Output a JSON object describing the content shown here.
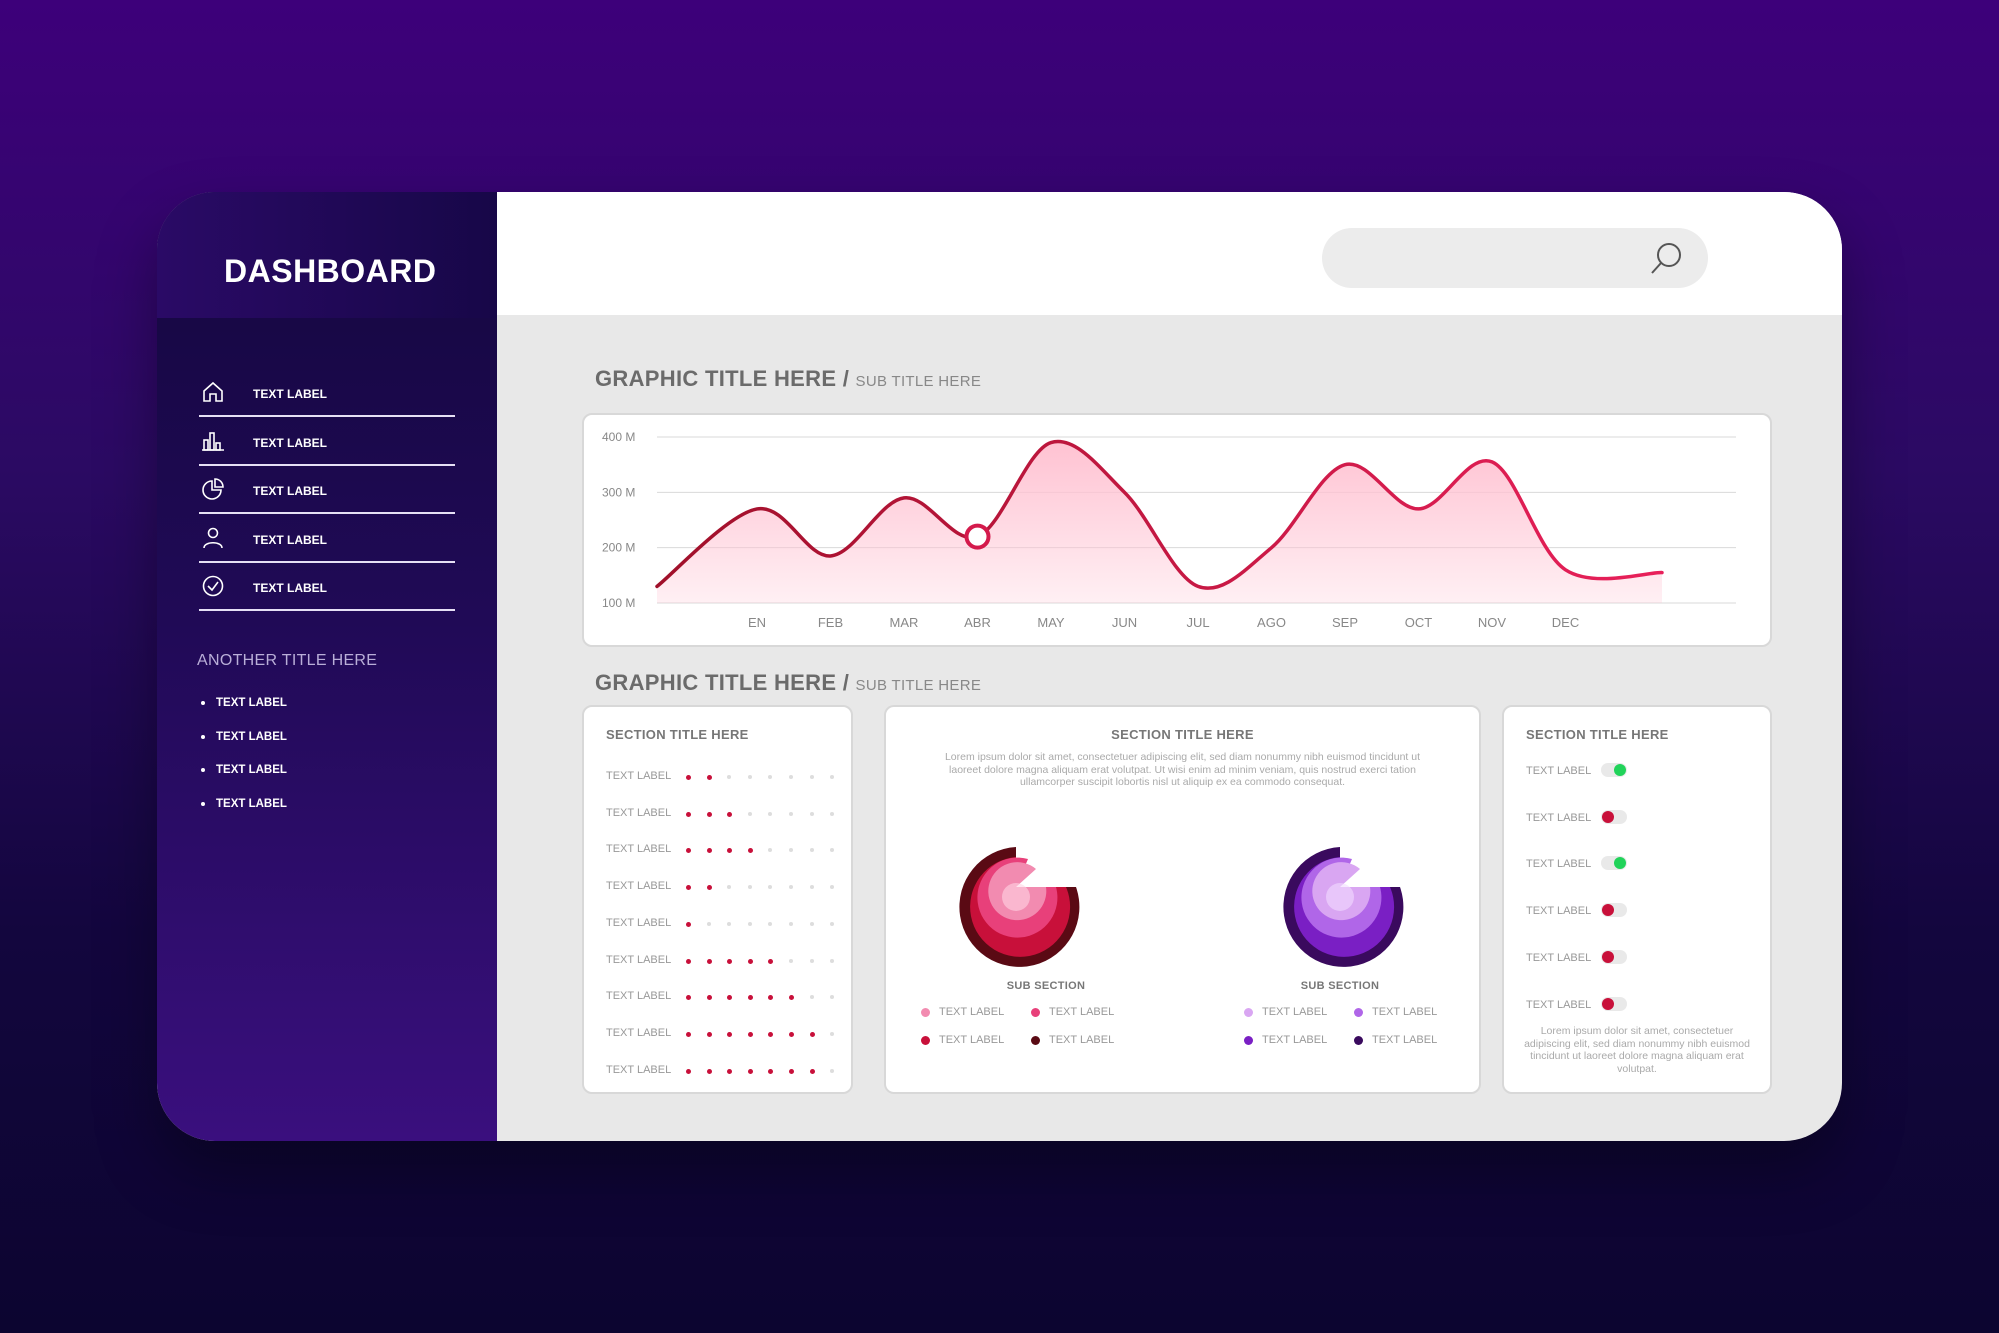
{
  "sidebar": {
    "title": "DASHBOARD",
    "nav": [
      {
        "label": "TEXT LABEL",
        "icon": "home-icon"
      },
      {
        "label": "TEXT LABEL",
        "icon": "bar-chart-icon"
      },
      {
        "label": "TEXT LABEL",
        "icon": "pie-chart-icon"
      },
      {
        "label": "TEXT LABEL",
        "icon": "user-icon"
      },
      {
        "label": "TEXT LABEL",
        "icon": "check-circle-icon"
      }
    ],
    "another_title": "ANOTHER TITLE HERE",
    "bullets": [
      "TEXT LABEL",
      "TEXT LABEL",
      "TEXT LABEL",
      "TEXT LABEL"
    ]
  },
  "search": {
    "placeholder": "",
    "icon": "search-icon"
  },
  "graphic1": {
    "title": "GRAPHIC TITLE HERE /",
    "subtitle": "SUB TITLE HERE"
  },
  "graphic2": {
    "title": "GRAPHIC TITLE HERE /",
    "subtitle": "SUB TITLE HERE"
  },
  "chart_data": {
    "type": "area",
    "categories": [
      "EN",
      "FEB",
      "MAR",
      "ABR",
      "MAY",
      "JUN",
      "JUL",
      "AGO",
      "SEP",
      "OCT",
      "NOV",
      "DEC"
    ],
    "values": [
      270,
      185,
      290,
      220,
      390,
      300,
      130,
      200,
      350,
      270,
      355,
      160
    ],
    "y_ticks": [
      "400 M",
      "300 M",
      "200 M",
      "100 M"
    ],
    "ylim": [
      100,
      400
    ],
    "highlight_category": "ABR",
    "grid": true,
    "colors": {
      "line_start": "#a0102a",
      "line_end": "#e8205a",
      "fill": "#ffc2d2"
    }
  },
  "dot_section": {
    "title": "SECTION TITLE HERE",
    "rows": [
      {
        "label": "TEXT LABEL",
        "filled": 2
      },
      {
        "label": "TEXT LABEL",
        "filled": 3
      },
      {
        "label": "TEXT LABEL",
        "filled": 4
      },
      {
        "label": "TEXT LABEL",
        "filled": 2
      },
      {
        "label": "TEXT LABEL",
        "filled": 1
      },
      {
        "label": "TEXT LABEL",
        "filled": 5
      },
      {
        "label": "TEXT LABEL",
        "filled": 6
      },
      {
        "label": "TEXT LABEL",
        "filled": 7
      },
      {
        "label": "TEXT LABEL",
        "filled": 7
      }
    ],
    "total_dots": 8,
    "colors": {
      "on": "#c8103a",
      "off": "#dddddd"
    }
  },
  "center_section": {
    "title": "SECTION TITLE HERE",
    "text": "Lorem ipsum dolor sit amet, consectetuer adipiscing elit, sed diam nonummy nibh euismod tincidunt ut laoreet dolore magna aliquam erat volutpat. Ut wisi enim ad minim veniam, quis nostrud exerci tation ullamcorper suscipit lobortis nisl ut aliquip ex ea commodo consequat.",
    "subsections": [
      {
        "title": "SUB SECTION",
        "legend": [
          {
            "label": "TEXT LABEL",
            "color": "#f28bb0"
          },
          {
            "label": "TEXT LABEL",
            "color": "#e8407a"
          },
          {
            "label": "TEXT LABEL",
            "color": "#c8103a"
          },
          {
            "label": "TEXT LABEL",
            "color": "#5a0a14"
          }
        ]
      },
      {
        "title": "SUB SECTION",
        "legend": [
          {
            "label": "TEXT LABEL",
            "color": "#d9a6f2"
          },
          {
            "label": "TEXT LABEL",
            "color": "#b066e8"
          },
          {
            "label": "TEXT LABEL",
            "color": "#7a1fc4"
          },
          {
            "label": "TEXT LABEL",
            "color": "#3a0a5e"
          }
        ]
      }
    ]
  },
  "toggle_section": {
    "title": "SECTION TITLE HERE",
    "rows": [
      {
        "label": "TEXT LABEL",
        "on": true
      },
      {
        "label": "TEXT LABEL",
        "on": false
      },
      {
        "label": "TEXT LABEL",
        "on": true
      },
      {
        "label": "TEXT LABEL",
        "on": false
      },
      {
        "label": "TEXT LABEL",
        "on": false
      },
      {
        "label": "TEXT LABEL",
        "on": false
      }
    ],
    "text": "Lorem ipsum dolor sit amet, consectetuer adipiscing elit, sed diam nonummy nibh euismod tincidunt ut laoreet dolore magna aliquam erat volutpat.",
    "colors": {
      "on": "#21d35a",
      "off": "#c8103a"
    }
  }
}
